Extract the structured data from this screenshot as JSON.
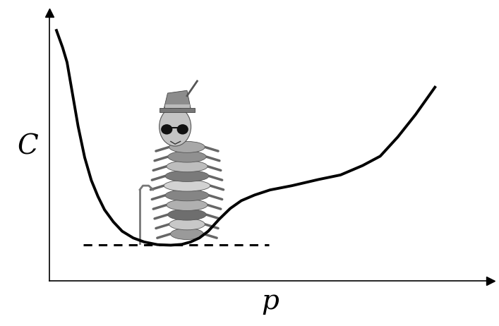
{
  "chart_data": {
    "type": "line",
    "x_label": "p",
    "y_label": "C",
    "xlim": [
      0,
      10
    ],
    "ylim": [
      0,
      10
    ],
    "tick_labels": false,
    "series": [
      {
        "color": "#000000",
        "line_style": "solid",
        "x": [
          0.16,
          0.3,
          0.4,
          0.5,
          0.65,
          0.8,
          0.95,
          1.1,
          1.25,
          1.45,
          1.65,
          1.9,
          2.15,
          2.45,
          2.75,
          3.0,
          3.2,
          3.4,
          3.6,
          3.85,
          4.1,
          4.35,
          4.65,
          5.0,
          5.5,
          6.1,
          6.6,
          7.1,
          7.5,
          7.9,
          8.3,
          8.74
        ],
        "values": [
          9.34,
          8.7,
          8.15,
          7.2,
          5.77,
          4.6,
          3.75,
          3.15,
          2.65,
          2.2,
          1.85,
          1.6,
          1.45,
          1.35,
          1.33,
          1.36,
          1.45,
          1.6,
          1.85,
          2.3,
          2.7,
          2.99,
          3.2,
          3.39,
          3.55,
          3.78,
          3.95,
          4.3,
          4.65,
          5.37,
          6.2,
          7.22
        ]
      },
      {
        "color": "#000000",
        "line_style": "dashed",
        "x": [
          0.77,
          4.97
        ],
        "values": [
          1.33,
          1.33
        ]
      }
    ]
  }
}
